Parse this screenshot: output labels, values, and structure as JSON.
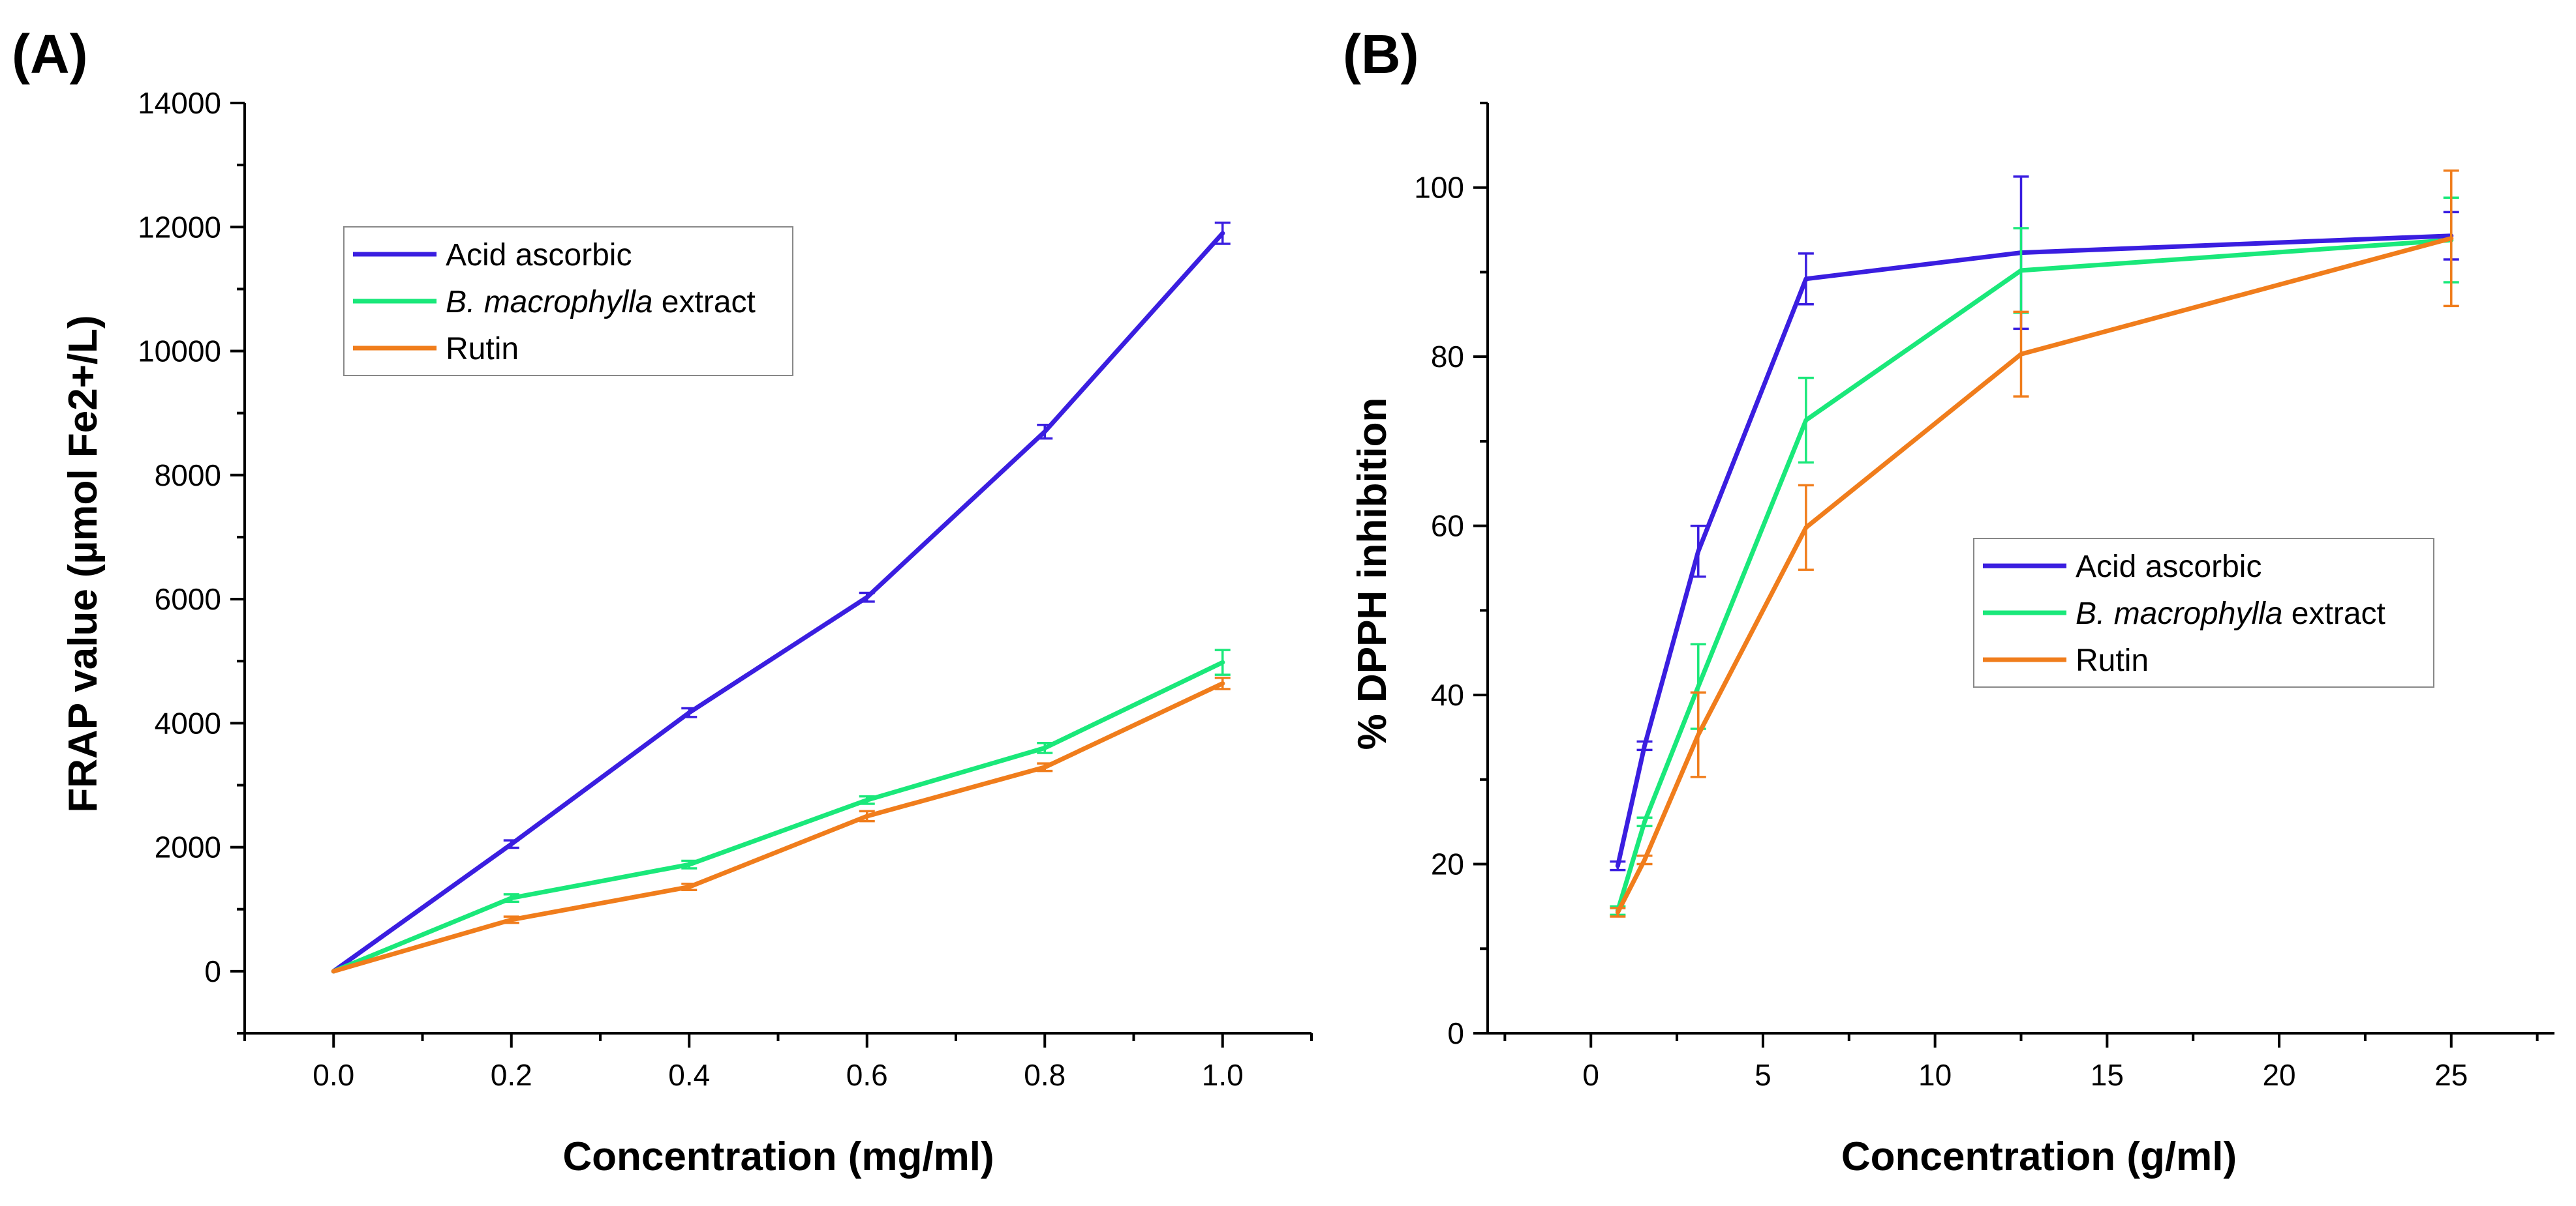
{
  "chart_data": [
    {
      "type": "line",
      "panel_label": "(A)",
      "title": "",
      "xlabel": "Concentration (mg/ml)",
      "ylabel": "FRAP value (µmol Fe2+/L)",
      "xlim": [
        -0.1,
        1.1
      ],
      "ylim": [
        -1000,
        14000
      ],
      "x_ticks": [
        "0.0",
        "0.2",
        "0.4",
        "0.6",
        "0.8",
        "1.0"
      ],
      "x_tick_values": [
        0,
        0.2,
        0.4,
        0.6,
        0.8,
        1.0
      ],
      "y_ticks": [
        "0",
        "2000",
        "4000",
        "6000",
        "8000",
        "10000",
        "12000",
        "14000"
      ],
      "y_tick_values": [
        0,
        2000,
        4000,
        6000,
        8000,
        10000,
        12000,
        14000
      ],
      "legend_position": "upper-left",
      "series": [
        {
          "name": "Acid ascorbic",
          "name_parts": [
            {
              "text": "Acid ascorbic",
              "italic": false
            }
          ],
          "color": "#3a1ee0",
          "x": [
            0,
            0.2,
            0.4,
            0.6,
            0.8,
            1.0
          ],
          "y": [
            0,
            2050,
            4170,
            6030,
            8700,
            11900
          ],
          "err": [
            0,
            60,
            70,
            70,
            110,
            170
          ]
        },
        {
          "name": "B. macrophylla extract",
          "name_parts": [
            {
              "text": "B. macrophylla",
              "italic": true
            },
            {
              "text": " extract",
              "italic": false
            }
          ],
          "color": "#1ae87a",
          "x": [
            0,
            0.2,
            0.4,
            0.6,
            0.8,
            1.0
          ],
          "y": [
            0,
            1180,
            1720,
            2760,
            3600,
            4980
          ],
          "err": [
            0,
            60,
            60,
            60,
            80,
            200
          ]
        },
        {
          "name": "Rutin",
          "name_parts": [
            {
              "text": "Rutin",
              "italic": false
            }
          ],
          "color": "#f07d1c",
          "x": [
            0,
            0.2,
            0.4,
            0.6,
            0.8,
            1.0
          ],
          "y": [
            0,
            830,
            1360,
            2500,
            3290,
            4640
          ],
          "err": [
            0,
            50,
            50,
            80,
            60,
            90
          ]
        }
      ]
    },
    {
      "type": "line",
      "panel_label": "(B)",
      "title": "",
      "xlabel": "Concentration (g/ml)",
      "ylabel": "% DPPH inhibition",
      "xlim": [
        -3,
        28
      ],
      "ylim": [
        0,
        110
      ],
      "x_ticks": [
        "0",
        "5",
        "10",
        "15",
        "20",
        "25"
      ],
      "x_tick_values": [
        0,
        5,
        10,
        15,
        20,
        25
      ],
      "y_ticks": [
        "0",
        "20",
        "40",
        "60",
        "80",
        "100"
      ],
      "y_tick_values": [
        0,
        20,
        40,
        60,
        80,
        100
      ],
      "legend_position": "center-right",
      "series": [
        {
          "name": "Acid ascorbic",
          "name_parts": [
            {
              "text": "Acid ascorbic",
              "italic": false
            }
          ],
          "color": "#3a1ee0",
          "x": [
            0.78,
            1.56,
            3.12,
            6.25,
            12.5,
            25
          ],
          "y": [
            19.8,
            34.0,
            57.0,
            89.2,
            92.3,
            94.3
          ],
          "err": [
            0.5,
            0.5,
            3.0,
            3.0,
            9.0,
            2.8
          ]
        },
        {
          "name": "B. macrophylla extract",
          "name_parts": [
            {
              "text": "B. macrophylla",
              "italic": true
            },
            {
              "text": " extract",
              "italic": false
            }
          ],
          "color": "#1ae87a",
          "x": [
            0.78,
            1.56,
            3.12,
            6.25,
            12.5,
            25
          ],
          "y": [
            14.5,
            25.0,
            41.0,
            72.5,
            90.2,
            93.8
          ],
          "err": [
            0.5,
            0.5,
            5.0,
            5.0,
            5.0,
            5.0
          ]
        },
        {
          "name": "Rutin",
          "name_parts": [
            {
              "text": "Rutin",
              "italic": false
            }
          ],
          "color": "#f07d1c",
          "x": [
            0.78,
            1.56,
            3.12,
            6.25,
            12.5,
            25
          ],
          "y": [
            14.3,
            20.5,
            35.3,
            59.8,
            80.3,
            94.0
          ],
          "err": [
            0.5,
            0.5,
            5.0,
            5.0,
            5.0,
            8.0
          ]
        }
      ]
    }
  ]
}
